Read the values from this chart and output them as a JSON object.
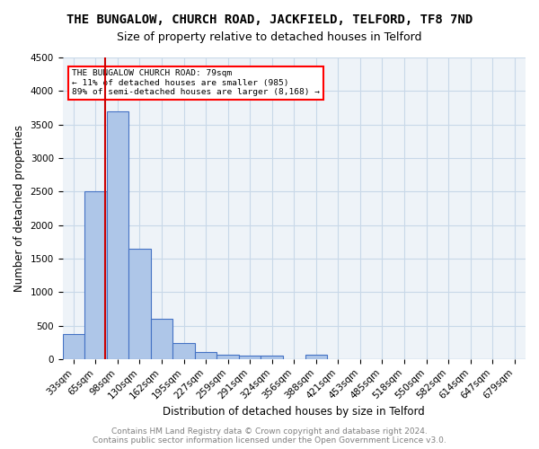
{
  "title": "THE BUNGALOW, CHURCH ROAD, JACKFIELD, TELFORD, TF8 7ND",
  "subtitle": "Size of property relative to detached houses in Telford",
  "xlabel": "Distribution of detached houses by size in Telford",
  "ylabel": "Number of detached properties",
  "categories": [
    "33sqm",
    "65sqm",
    "98sqm",
    "130sqm",
    "162sqm",
    "195sqm",
    "227sqm",
    "259sqm",
    "291sqm",
    "324sqm",
    "356sqm",
    "388sqm",
    "421sqm",
    "453sqm",
    "485sqm",
    "518sqm",
    "550sqm",
    "582sqm",
    "614sqm",
    "647sqm",
    "679sqm"
  ],
  "bar_values": [
    380,
    2500,
    3700,
    1640,
    600,
    240,
    110,
    60,
    50,
    50,
    0,
    60,
    0,
    0,
    0,
    0,
    0,
    0,
    0,
    0,
    0
  ],
  "bar_color": "#aec6e8",
  "bar_edge_color": "#4472c4",
  "bar_edge_width": 0.8,
  "grid_color": "#c8d8e8",
  "bg_color": "#eef3f8",
  "property_label": "THE BUNGALOW CHURCH ROAD: 79sqm",
  "annotation_line1": "← 11% of detached houses are smaller (985)",
  "annotation_line2": "89% of semi-detached houses are larger (8,168) →",
  "vline_color": "#cc0000",
  "vline_x": 1.45,
  "ylim": [
    0,
    4500
  ],
  "yticks": [
    0,
    500,
    1000,
    1500,
    2000,
    2500,
    3000,
    3500,
    4000,
    4500
  ],
  "footer": "Contains HM Land Registry data © Crown copyright and database right 2024.\nContains public sector information licensed under the Open Government Licence v3.0.",
  "title_fontsize": 10,
  "subtitle_fontsize": 9,
  "xlabel_fontsize": 8.5,
  "ylabel_fontsize": 8.5,
  "tick_fontsize": 7.5,
  "footer_fontsize": 6.5
}
